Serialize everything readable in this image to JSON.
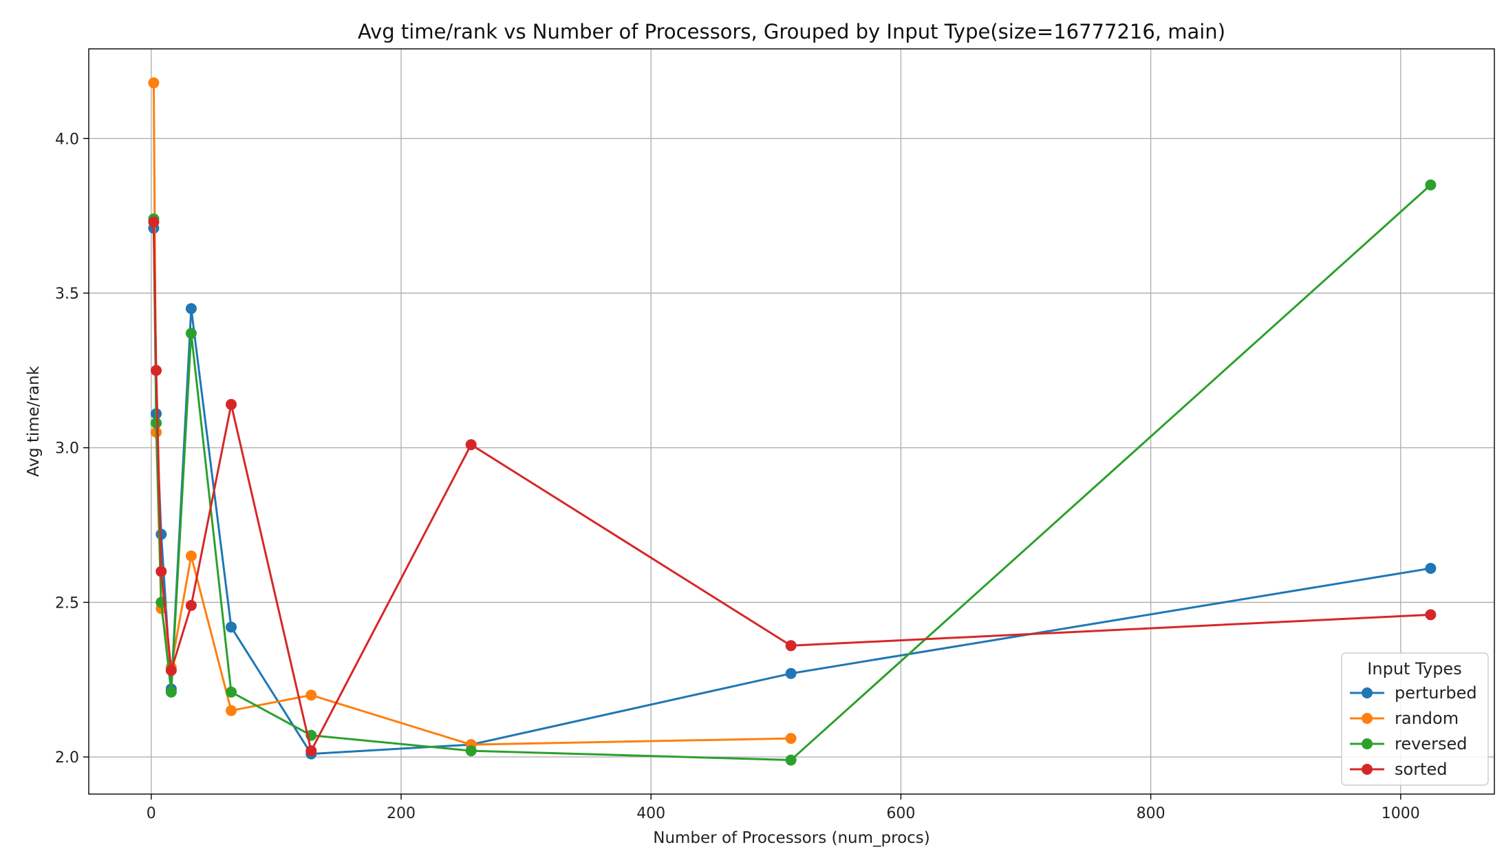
{
  "chart_data": {
    "type": "line",
    "title": "Avg time/rank vs Number of Processors, Grouped by Input Type(size=16777216, main)",
    "xlabel": "Number of Processors (num_procs)",
    "ylabel": "Avg time/rank",
    "xlim": [
      -50,
      1075
    ],
    "ylim": [
      1.88,
      4.29
    ],
    "xticks": [
      0,
      200,
      400,
      600,
      800,
      1000
    ],
    "yticks": [
      2.0,
      2.5,
      3.0,
      3.5,
      4.0
    ],
    "xtick_labels": [
      "0",
      "200",
      "400",
      "600",
      "800",
      "1000"
    ],
    "ytick_labels": [
      "2.0",
      "2.5",
      "3.0",
      "3.5",
      "4.0"
    ],
    "grid": true,
    "legend": {
      "title": "Input Types",
      "placement": "bottom-right"
    },
    "series": [
      {
        "name": "perturbed",
        "color": "#1f77b4",
        "x": [
          2,
          4,
          8,
          16,
          32,
          64,
          128,
          256,
          512,
          1024
        ],
        "y": [
          3.71,
          3.11,
          2.72,
          2.22,
          3.45,
          2.42,
          2.01,
          2.04,
          2.27,
          2.61
        ]
      },
      {
        "name": "random",
        "color": "#ff7f0e",
        "x": [
          2,
          4,
          8,
          16,
          32,
          64,
          128,
          256,
          512
        ],
        "y": [
          4.18,
          3.05,
          2.48,
          2.29,
          2.65,
          2.15,
          2.2,
          2.04,
          2.06
        ]
      },
      {
        "name": "reversed",
        "color": "#2ca02c",
        "x": [
          2,
          4,
          8,
          16,
          32,
          64,
          128,
          256,
          512,
          1024
        ],
        "y": [
          3.74,
          3.08,
          2.5,
          2.21,
          3.37,
          2.21,
          2.07,
          2.02,
          1.99,
          3.85
        ]
      },
      {
        "name": "sorted",
        "color": "#d62728",
        "x": [
          2,
          4,
          8,
          16,
          32,
          64,
          128,
          256,
          512,
          1024
        ],
        "y": [
          3.73,
          3.25,
          2.6,
          2.28,
          2.49,
          3.14,
          2.02,
          3.01,
          2.36,
          2.46
        ]
      }
    ]
  }
}
